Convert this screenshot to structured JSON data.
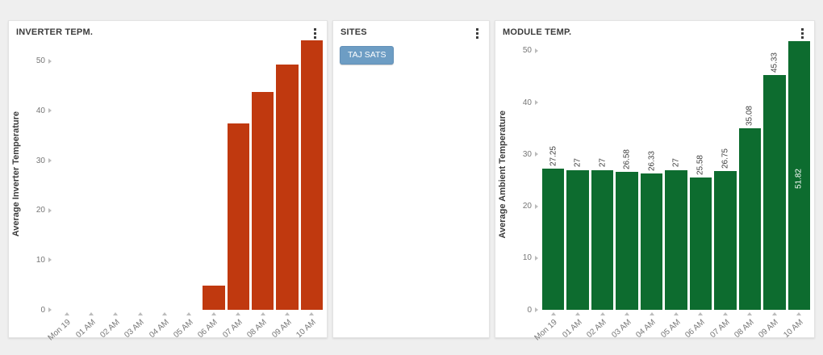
{
  "page": {
    "background": "#efefef",
    "panel_background": "#ffffff"
  },
  "panels": {
    "inverter": {
      "title": "INVERTER TEPM."
    },
    "sites": {
      "title": "SITES",
      "site_button": "TAJ SATS",
      "button_color": "#6d9dc4"
    },
    "module": {
      "title": "MODULE TEMP."
    }
  },
  "chart_data": [
    {
      "type": "bar",
      "title": "INVERTER TEPM.",
      "xlabel": "",
      "ylabel": "Average Inverter Temperature",
      "categories": [
        "Mon 19",
        "01 AM",
        "02 AM",
        "03 AM",
        "04 AM",
        "05 AM",
        "06 AM",
        "07 AM",
        "08 AM",
        "09 AM",
        "10 AM"
      ],
      "values": [
        0,
        0,
        0,
        0,
        0,
        0,
        4.9,
        37.5,
        43.8,
        49.3,
        54.1
      ],
      "value_labels": null,
      "bar_color": "#c0390f",
      "show_value_labels": false,
      "inside_label_index": -1,
      "yticks": [
        0,
        10,
        20,
        30,
        40,
        50
      ],
      "ylim": [
        0,
        54.5
      ],
      "grid": false,
      "legend": "none"
    },
    {
      "type": "bar",
      "title": "MODULE TEMP.",
      "xlabel": "",
      "ylabel": "Average Ambient Temperature",
      "categories": [
        "Mon 19",
        "01 AM",
        "02 AM",
        "03 AM",
        "04 AM",
        "05 AM",
        "06 AM",
        "07 AM",
        "08 AM",
        "09 AM",
        "10 AM"
      ],
      "values": [
        27.25,
        27,
        27,
        26.58,
        26.33,
        27,
        25.58,
        26.75,
        35.08,
        45.33,
        51.82
      ],
      "value_labels": [
        "27.25",
        "27",
        "27",
        "26.58",
        "26.33",
        "27",
        "25.58",
        "26.75",
        "35.08",
        "45.33",
        "51.82"
      ],
      "bar_color": "#0d6c2f",
      "show_value_labels": true,
      "inside_label_index": 10,
      "yticks": [
        0,
        10,
        20,
        30,
        40,
        50
      ],
      "ylim": [
        0,
        52.3
      ],
      "grid": false,
      "legend": "none"
    }
  ]
}
